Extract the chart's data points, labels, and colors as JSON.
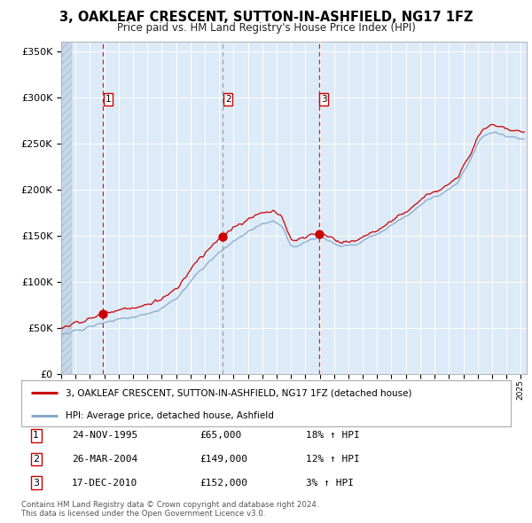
{
  "title": "3, OAKLEAF CRESCENT, SUTTON-IN-ASHFIELD, NG17 1FZ",
  "subtitle": "Price paid vs. HM Land Registry's House Price Index (HPI)",
  "sale_prices": [
    65000,
    149000,
    152000
  ],
  "sale_labels": [
    "1",
    "2",
    "3"
  ],
  "sale_pct": [
    "18% ↑ HPI",
    "12% ↑ HPI",
    "3% ↑ HPI"
  ],
  "sale_date_labels": [
    "24-NOV-1995",
    "26-MAR-2004",
    "17-DEC-2010"
  ],
  "sale_prices_str": [
    "£65,000",
    "£149,000",
    "£152,000"
  ],
  "legend_property": "3, OAKLEAF CRESCENT, SUTTON-IN-ASHFIELD, NG17 1FZ (detached house)",
  "legend_hpi": "HPI: Average price, detached house, Ashfield",
  "footer": "Contains HM Land Registry data © Crown copyright and database right 2024.\nThis data is licensed under the Open Government Licence v3.0.",
  "property_color": "#cc0000",
  "hpi_color": "#88aacc",
  "ylim": [
    0,
    360000
  ],
  "yticks": [
    0,
    50000,
    100000,
    150000,
    200000,
    250000,
    300000,
    350000
  ],
  "ytick_labels": [
    "£0",
    "£50K",
    "£100K",
    "£150K",
    "£200K",
    "£250K",
    "£300K",
    "£350K"
  ],
  "bg_color": "#ddeaf7",
  "grid_color": "#ffffff",
  "vline_grey_color": "#888888",
  "vline_red_color": "#cc0000"
}
